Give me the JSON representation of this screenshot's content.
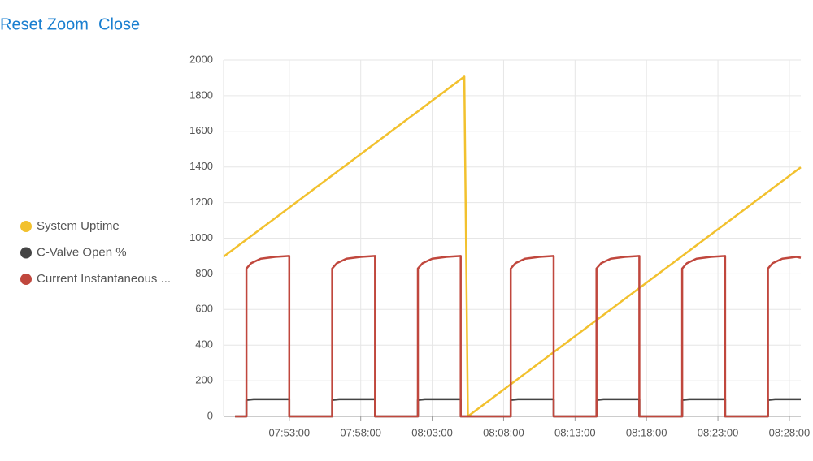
{
  "toolbar": {
    "reset_zoom": "Reset Zoom",
    "close": "Close"
  },
  "chart_data": {
    "type": "line",
    "legend": "left",
    "grid": true,
    "xlim": [
      "07:48:24",
      "08:28:48"
    ],
    "xticks": [
      "07:53:00",
      "07:58:00",
      "08:03:00",
      "08:08:00",
      "08:13:00",
      "08:18:00",
      "08:23:00",
      "08:28:00"
    ],
    "ylim": [
      0,
      2000
    ],
    "yticks": [
      0,
      200,
      400,
      600,
      800,
      1000,
      1200,
      1400,
      1600,
      1800,
      2000
    ],
    "series": [
      {
        "name": "System Uptime",
        "color": "#f2c12e",
        "x": [
          "07:48:24",
          "08:05:15",
          "08:05:30",
          "08:28:48"
        ],
        "values": [
          896,
          1907,
          0,
          1398
        ]
      },
      {
        "name": "C-Valve Open %",
        "color": "#444444",
        "x": [
          "07:49:12",
          "07:50:00",
          "07:50:00",
          "07:50:30",
          "07:53:00",
          "07:53:00",
          "07:56:00",
          "07:56:00",
          "07:56:30",
          "07:59:00",
          "07:59:00",
          "08:02:00",
          "08:02:00",
          "08:02:30",
          "08:05:00",
          "08:05:00",
          "08:08:30",
          "08:08:30",
          "08:09:00",
          "08:11:30",
          "08:11:30",
          "08:14:30",
          "08:14:30",
          "08:15:00",
          "08:17:30",
          "08:17:30",
          "08:20:30",
          "08:20:30",
          "08:21:00",
          "08:23:30",
          "08:23:30",
          "08:26:30",
          "08:26:30",
          "08:27:00",
          "08:28:48"
        ],
        "values": [
          0,
          0,
          92,
          96,
          96,
          0,
          0,
          92,
          96,
          96,
          0,
          0,
          92,
          96,
          96,
          0,
          0,
          92,
          96,
          96,
          0,
          0,
          92,
          96,
          96,
          0,
          0,
          92,
          96,
          96,
          0,
          0,
          92,
          96,
          96
        ]
      },
      {
        "name": "Current Instantaneous ...",
        "color": "#c0473d",
        "x": [
          "07:49:12",
          "07:50:00",
          "07:50:00",
          "07:50:20",
          "07:51:00",
          "07:52:00",
          "07:53:00",
          "07:53:00",
          "07:56:00",
          "07:56:00",
          "07:56:20",
          "07:57:00",
          "07:58:00",
          "07:59:00",
          "07:59:00",
          "08:02:00",
          "08:02:00",
          "08:02:20",
          "08:03:00",
          "08:04:00",
          "08:05:00",
          "08:05:00",
          "08:08:30",
          "08:08:30",
          "08:08:50",
          "08:09:30",
          "08:10:30",
          "08:11:30",
          "08:11:30",
          "08:14:30",
          "08:14:30",
          "08:14:50",
          "08:15:30",
          "08:16:30",
          "08:17:30",
          "08:17:30",
          "08:20:30",
          "08:20:30",
          "08:20:50",
          "08:21:30",
          "08:22:30",
          "08:23:30",
          "08:23:30",
          "08:26:30",
          "08:26:30",
          "08:26:50",
          "08:27:30",
          "08:28:30",
          "08:28:48"
        ],
        "values": [
          0,
          0,
          830,
          860,
          885,
          895,
          900,
          0,
          0,
          830,
          860,
          885,
          895,
          900,
          0,
          0,
          830,
          860,
          885,
          895,
          900,
          0,
          0,
          830,
          860,
          885,
          895,
          900,
          0,
          0,
          830,
          860,
          885,
          895,
          900,
          0,
          0,
          830,
          860,
          885,
          895,
          900,
          0,
          0,
          830,
          860,
          885,
          895,
          890
        ]
      }
    ]
  }
}
